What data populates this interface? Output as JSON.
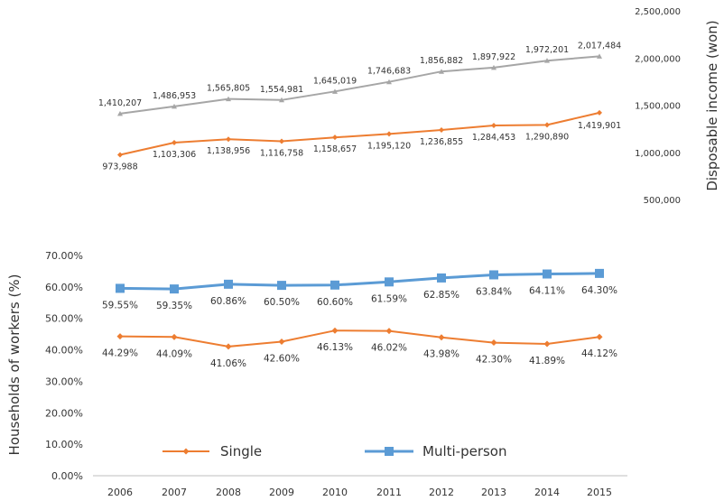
{
  "chart_data": [
    {
      "type": "line",
      "title": "",
      "ylabel": "Disposable income (won)",
      "ylim": [
        500000,
        2500000
      ],
      "yticks": [
        "2,500,000",
        "2,000,000",
        "1,500,000",
        "1,000,000",
        "500,000"
      ],
      "ytick_values": [
        2500000,
        2000000,
        1500000,
        1000000,
        500000
      ],
      "x": [
        2006,
        2007,
        2008,
        2009,
        2010,
        2011,
        2012,
        2013,
        2014,
        2015
      ],
      "series": [
        {
          "name": "Multi-person",
          "color": "#a6a6a6",
          "values": [
            1410207,
            1486953,
            1565805,
            1554981,
            1645019,
            1746683,
            1856882,
            1897922,
            1972201,
            2017484
          ],
          "labels": [
            "1,410,207",
            "1,486,953",
            "1,565,805",
            "1,554,981",
            "1,645,019",
            "1,746,683",
            "1,856,882",
            "1,897,922",
            "1,972,201",
            "2,017,484"
          ]
        },
        {
          "name": "Single",
          "color": "#ed7d31",
          "values": [
            973988,
            1103306,
            1138956,
            1116758,
            1158657,
            1195120,
            1236855,
            1284453,
            1290890,
            1419901
          ],
          "labels": [
            "973,988",
            "1,103,306",
            "1,138,956",
            "1,116,758",
            "1,158,657",
            "1,195,120",
            "1,236,855",
            "1,284,453",
            "1,290,890",
            "1,419,901"
          ]
        }
      ]
    },
    {
      "type": "line",
      "title": "",
      "ylabel": "Households of workers (%)",
      "ylim": [
        0,
        70
      ],
      "yticks": [
        "70.00%",
        "60.00%",
        "50.00%",
        "40.00%",
        "30.00%",
        "20.00%",
        "10.00%",
        "0.00%"
      ],
      "ytick_values": [
        70,
        60,
        50,
        40,
        30,
        20,
        10,
        0
      ],
      "categories": [
        "2006",
        "2007",
        "2008",
        "2009",
        "2010",
        "2011",
        "2012",
        "2013",
        "2014",
        "2015"
      ],
      "x": [
        2006,
        2007,
        2008,
        2009,
        2010,
        2011,
        2012,
        2013,
        2014,
        2015
      ],
      "legend": [
        "Single",
        "Multi-person"
      ],
      "series": [
        {
          "name": "Multi-person",
          "color": "#5b9bd5",
          "values": [
            59.55,
            59.35,
            60.86,
            60.5,
            60.6,
            61.59,
            62.85,
            63.84,
            64.11,
            64.3
          ],
          "labels": [
            "59.55%",
            "59.35%",
            "60.86%",
            "60.50%",
            "60.60%",
            "61.59%",
            "62.85%",
            "63.84%",
            "64.11%",
            "64.30%"
          ]
        },
        {
          "name": "Single",
          "color": "#ed7d31",
          "values": [
            44.29,
            44.09,
            41.06,
            42.6,
            46.13,
            46.02,
            43.98,
            42.3,
            41.89,
            44.12
          ],
          "labels": [
            "44.29%",
            "44.09%",
            "41.06%",
            "42.60%",
            "46.13%",
            "46.02%",
            "43.98%",
            "42.30%",
            "41.89%",
            "44.12%"
          ]
        }
      ]
    }
  ]
}
